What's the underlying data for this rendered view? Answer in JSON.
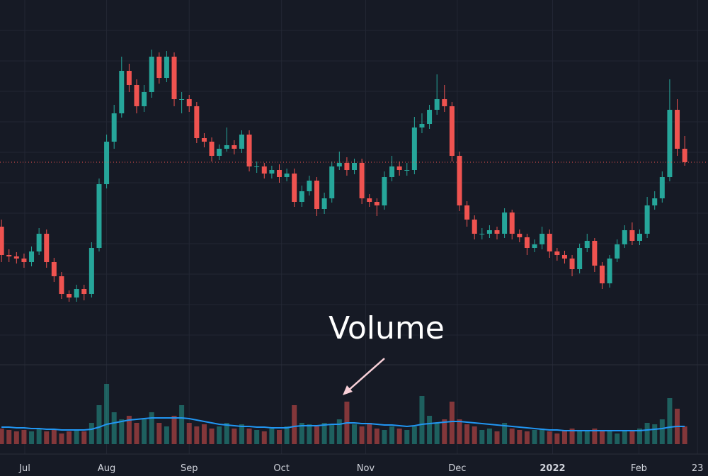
{
  "chart_data": {
    "type": "candlestick",
    "annotation": "Volume",
    "grid": true,
    "up_color": "#26a69a",
    "down_color": "#ef5350",
    "ma_color": "#2196f3",
    "xlim": [
      -0.2,
      94.1
    ],
    "xticks": [
      {
        "value": 3.1,
        "label": "Jul"
      },
      {
        "value": 14.0,
        "label": "Aug"
      },
      {
        "value": 25.0,
        "label": "Sep"
      },
      {
        "value": 37.3,
        "label": "Oct"
      },
      {
        "value": 48.5,
        "label": "Nov"
      },
      {
        "value": 60.7,
        "label": "Dec"
      },
      {
        "value": 73.4,
        "label": "2022"
      },
      {
        "value": 84.9,
        "label": "Feb"
      },
      {
        "value": 92.7,
        "label": "23"
      }
    ],
    "ylim": [
      0,
      510
    ],
    "volume_ylim": [
      0,
      100
    ],
    "open": [
      190,
      150,
      148,
      145,
      140,
      155,
      180,
      140,
      120,
      95,
      90,
      102,
      95,
      160,
      250,
      310,
      350,
      410,
      390,
      360,
      380,
      430,
      400,
      430,
      370,
      370,
      360,
      315,
      310,
      290,
      300,
      305,
      300,
      320,
      275,
      275,
      265,
      270,
      260,
      265,
      225,
      240,
      255,
      215,
      230,
      275,
      280,
      270,
      280,
      230,
      225,
      220,
      260,
      275,
      270,
      270,
      330,
      335,
      355,
      370,
      360,
      290,
      220,
      200,
      180,
      180,
      185,
      180,
      210,
      180,
      175,
      160,
      165,
      180,
      155,
      150,
      145,
      130,
      160,
      170,
      135,
      110,
      145,
      165,
      185,
      170,
      180,
      220,
      230,
      260,
      355,
      300
    ],
    "high": [
      200,
      158,
      154,
      152,
      162,
      188,
      186,
      146,
      126,
      100,
      108,
      108,
      168,
      258,
      320,
      362,
      430,
      420,
      398,
      390,
      440,
      436,
      438,
      436,
      380,
      376,
      366,
      322,
      316,
      306,
      330,
      312,
      326,
      326,
      282,
      280,
      276,
      278,
      272,
      272,
      248,
      262,
      260,
      238,
      282,
      296,
      288,
      286,
      286,
      236,
      230,
      268,
      290,
      282,
      280,
      345,
      350,
      362,
      405,
      390,
      366,
      296,
      226,
      206,
      188,
      192,
      190,
      216,
      214,
      186,
      180,
      172,
      190,
      186,
      160,
      156,
      150,
      166,
      180,
      174,
      140,
      150,
      172,
      192,
      196,
      186,
      232,
      240,
      268,
      398,
      370,
      318
    ],
    "low": [
      140,
      140,
      138,
      132,
      134,
      150,
      132,
      112,
      88,
      84,
      84,
      86,
      90,
      155,
      244,
      300,
      344,
      380,
      350,
      352,
      372,
      392,
      394,
      360,
      350,
      352,
      308,
      302,
      282,
      284,
      296,
      292,
      294,
      268,
      266,
      258,
      258,
      252,
      254,
      218,
      218,
      234,
      205,
      208,
      224,
      270,
      262,
      264,
      222,
      218,
      205,
      214,
      254,
      262,
      262,
      264,
      322,
      328,
      348,
      352,
      282,
      212,
      190,
      172,
      172,
      174,
      172,
      174,
      172,
      168,
      150,
      154,
      158,
      146,
      142,
      138,
      120,
      124,
      154,
      126,
      102,
      104,
      140,
      160,
      164,
      164,
      174,
      214,
      224,
      254,
      290,
      276
    ],
    "close": [
      150,
      148,
      145,
      140,
      155,
      180,
      140,
      120,
      95,
      90,
      102,
      95,
      160,
      250,
      310,
      350,
      410,
      390,
      360,
      380,
      430,
      400,
      430,
      370,
      370,
      360,
      315,
      310,
      290,
      300,
      305,
      300,
      320,
      275,
      275,
      265,
      270,
      260,
      265,
      225,
      240,
      255,
      215,
      230,
      275,
      280,
      270,
      280,
      230,
      225,
      220,
      260,
      275,
      270,
      270,
      330,
      335,
      355,
      370,
      360,
      290,
      220,
      200,
      180,
      180,
      185,
      180,
      210,
      180,
      175,
      160,
      165,
      180,
      155,
      150,
      145,
      130,
      160,
      170,
      135,
      110,
      145,
      165,
      185,
      170,
      180,
      220,
      230,
      260,
      355,
      300,
      281
    ],
    "volume": [
      22,
      20,
      18,
      20,
      18,
      22,
      18,
      20,
      15,
      18,
      20,
      18,
      30,
      55,
      85,
      45,
      35,
      40,
      30,
      35,
      45,
      30,
      25,
      40,
      55,
      30,
      25,
      28,
      22,
      25,
      30,
      22,
      28,
      22,
      20,
      18,
      22,
      20,
      25,
      55,
      30,
      28,
      25,
      30,
      28,
      35,
      60,
      28,
      25,
      30,
      22,
      20,
      25,
      22,
      20,
      25,
      68,
      40,
      30,
      35,
      60,
      35,
      28,
      25,
      20,
      22,
      18,
      30,
      22,
      20,
      18,
      20,
      22,
      18,
      15,
      20,
      22,
      18,
      20,
      22,
      18,
      20,
      15,
      20,
      18,
      22,
      30,
      28,
      35,
      65,
      50,
      25
    ],
    "volume_ma": [
      24,
      24,
      23,
      23,
      22,
      22,
      21,
      21,
      20,
      20,
      20,
      20,
      21,
      24,
      28,
      30,
      32,
      34,
      35,
      36,
      37,
      37,
      37,
      37,
      37,
      36,
      34,
      32,
      30,
      28,
      27,
      26,
      25,
      25,
      24,
      24,
      23,
      23,
      23,
      25,
      26,
      26,
      26,
      27,
      28,
      28,
      30,
      30,
      29,
      29,
      28,
      27,
      27,
      26,
      25,
      26,
      28,
      29,
      30,
      31,
      32,
      32,
      31,
      30,
      29,
      28,
      27,
      26,
      25,
      24,
      23,
      22,
      21,
      20,
      20,
      19,
      19,
      19,
      19,
      19,
      19,
      19,
      19,
      19,
      19,
      19,
      20,
      21,
      22,
      24,
      25,
      25
    ]
  }
}
